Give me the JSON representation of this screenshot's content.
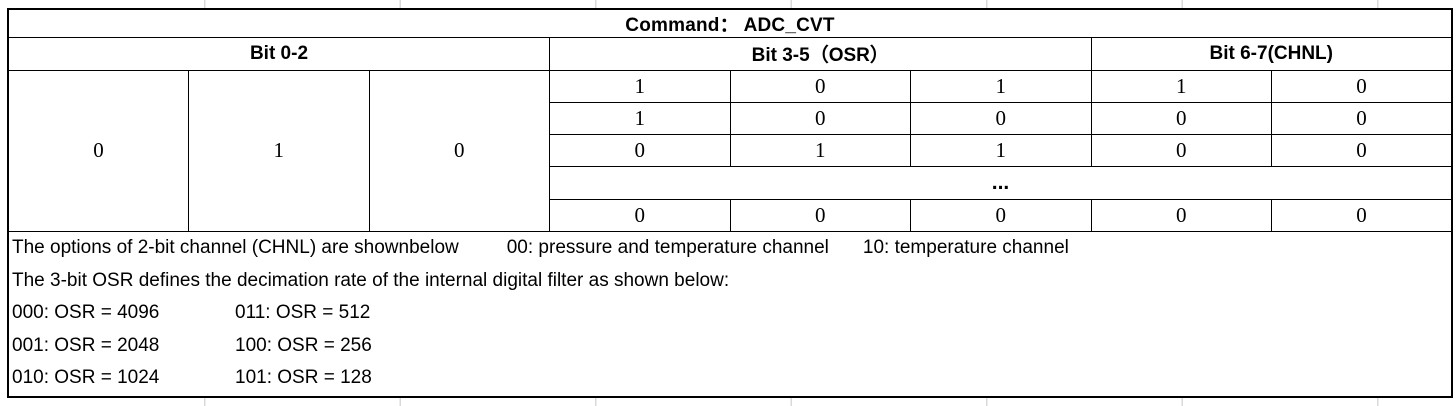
{
  "table": {
    "title": "Command：  ADC_CVT",
    "col_groups": [
      {
        "label": "Bit 0-2",
        "span": 3
      },
      {
        "label": "Bit 3-5（OSR）",
        "span": 3
      },
      {
        "label": "Bit 6-7(CHNL)",
        "span": 2
      }
    ],
    "fixed_bits": [
      "0",
      "1",
      "0"
    ],
    "bit_rows": [
      [
        "1",
        "0",
        "1",
        "1",
        "0"
      ],
      [
        "1",
        "0",
        "0",
        "0",
        "0"
      ],
      [
        "0",
        "1",
        "1",
        "0",
        "0"
      ],
      [
        "0",
        "0",
        "0",
        "0",
        "0"
      ]
    ],
    "ellipsis": "..."
  },
  "notes": {
    "chnl_intro": "The options of 2-bit channel (CHNL) are shownbelow",
    "chnl_00": "00: pressure and temperature channel",
    "chnl_10": "10: temperature channel",
    "osr_intro": "The 3-bit OSR defines the decimation rate of the internal digital filter as shown below:",
    "osr_rows": [
      [
        "000: OSR = 4096",
        "011: OSR = 512"
      ],
      [
        "001: OSR = 2048",
        "100: OSR = 256"
      ],
      [
        "010: OSR = 1024",
        "101: OSR = 128"
      ]
    ]
  }
}
